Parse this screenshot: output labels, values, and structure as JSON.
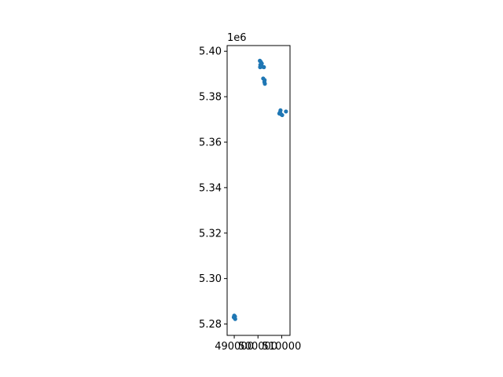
{
  "chart_data": {
    "type": "scatter",
    "title": "",
    "xlabel": "",
    "ylabel": "",
    "grid": false,
    "legend": "none",
    "xlim": [
      487000,
      513500
    ],
    "ylim": [
      5275000,
      5402500
    ],
    "y_offset_label": "1e6",
    "x_ticks": [
      {
        "value": 490000,
        "label": "490000"
      },
      {
        "value": 500000,
        "label": "500000"
      },
      {
        "value": 510000,
        "label": "510000"
      }
    ],
    "y_ticks": [
      {
        "value": 5280000,
        "label": "5.28"
      },
      {
        "value": 5300000,
        "label": "5.30"
      },
      {
        "value": 5320000,
        "label": "5.32"
      },
      {
        "value": 5340000,
        "label": "5.34"
      },
      {
        "value": 5360000,
        "label": "5.36"
      },
      {
        "value": 5380000,
        "label": "5.38"
      },
      {
        "value": 5400000,
        "label": "5.40"
      }
    ],
    "series": [
      {
        "color": "#1f77b4",
        "points": [
          {
            "x": 490000,
            "y": 5283700
          },
          {
            "x": 490300,
            "y": 5283300
          },
          {
            "x": 490100,
            "y": 5282700
          },
          {
            "x": 490400,
            "y": 5282200
          },
          {
            "x": 489800,
            "y": 5283000
          },
          {
            "x": 500800,
            "y": 5395800
          },
          {
            "x": 501200,
            "y": 5395300
          },
          {
            "x": 501600,
            "y": 5394600
          },
          {
            "x": 501000,
            "y": 5394000
          },
          {
            "x": 501400,
            "y": 5393700
          },
          {
            "x": 500900,
            "y": 5393000
          },
          {
            "x": 501700,
            "y": 5393200
          },
          {
            "x": 502500,
            "y": 5393000
          },
          {
            "x": 502200,
            "y": 5388000
          },
          {
            "x": 502800,
            "y": 5387300
          },
          {
            "x": 502700,
            "y": 5386500
          },
          {
            "x": 502900,
            "y": 5385700
          },
          {
            "x": 509500,
            "y": 5374000
          },
          {
            "x": 509300,
            "y": 5373200
          },
          {
            "x": 509000,
            "y": 5372600
          },
          {
            "x": 509700,
            "y": 5372300
          },
          {
            "x": 510200,
            "y": 5371900
          },
          {
            "x": 511800,
            "y": 5373500
          }
        ]
      }
    ]
  }
}
